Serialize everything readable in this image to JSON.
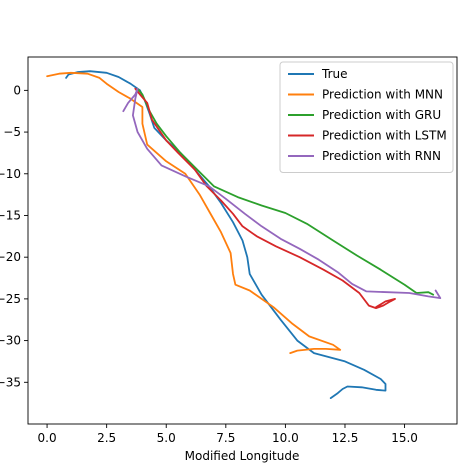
{
  "chart_data": {
    "type": "line",
    "title": "",
    "xlabel": "Modified Longitude",
    "ylabel": "",
    "xlim": [
      -0.8,
      17.2
    ],
    "ylim": [
      -40,
      4
    ],
    "x_ticks": [
      0.0,
      2.5,
      5.0,
      7.5,
      10.0,
      12.5,
      15.0
    ],
    "x_tick_labels": [
      "0.0",
      "2.5",
      "5.0",
      "7.5",
      "10.0",
      "12.5",
      "15.0"
    ],
    "y_ticks": [
      0,
      -5,
      -10,
      -15,
      -20,
      -25,
      -30,
      -35
    ],
    "y_tick_labels": [
      "0",
      "−5",
      "−10",
      "−15",
      "−20",
      "−25",
      "−30",
      "−35"
    ],
    "grid": false,
    "legend_position": "top-right",
    "series": [
      {
        "name": "True",
        "color": "#1f77b4",
        "points": [
          [
            0.8,
            1.5
          ],
          [
            0.9,
            1.9
          ],
          [
            1.3,
            2.2
          ],
          [
            1.8,
            2.3
          ],
          [
            2.5,
            2.1
          ],
          [
            3.0,
            1.6
          ],
          [
            3.5,
            0.8
          ],
          [
            3.9,
            0.0
          ],
          [
            4.1,
            -1.2
          ],
          [
            4.3,
            -2.8
          ],
          [
            4.5,
            -4.5
          ],
          [
            5.0,
            -6.0
          ],
          [
            5.6,
            -7.5
          ],
          [
            6.2,
            -9.5
          ],
          [
            6.8,
            -11.5
          ],
          [
            7.3,
            -13.5
          ],
          [
            7.8,
            -15.8
          ],
          [
            8.2,
            -18.0
          ],
          [
            8.4,
            -20.0
          ],
          [
            8.5,
            -22.0
          ],
          [
            9.0,
            -24.5
          ],
          [
            9.8,
            -27.5
          ],
          [
            10.5,
            -30.0
          ],
          [
            11.2,
            -31.5
          ],
          [
            12.5,
            -32.5
          ],
          [
            13.3,
            -33.5
          ],
          [
            14.0,
            -34.6
          ],
          [
            14.2,
            -35.2
          ],
          [
            14.2,
            -36.0
          ],
          [
            13.8,
            -35.9
          ],
          [
            13.2,
            -35.6
          ],
          [
            12.6,
            -35.5
          ],
          [
            12.4,
            -35.8
          ],
          [
            12.2,
            -36.3
          ],
          [
            11.9,
            -36.9
          ]
        ]
      },
      {
        "name": "Prediction with MNN",
        "color": "#ff7f0e",
        "points": [
          [
            0.0,
            1.7
          ],
          [
            0.5,
            2.0
          ],
          [
            1.0,
            2.1
          ],
          [
            1.7,
            2.0
          ],
          [
            2.2,
            1.5
          ],
          [
            2.5,
            0.8
          ],
          [
            3.0,
            -0.2
          ],
          [
            3.5,
            -1.0
          ],
          [
            4.0,
            -2.0
          ],
          [
            4.0,
            -4.0
          ],
          [
            4.2,
            -6.5
          ],
          [
            5.0,
            -8.5
          ],
          [
            5.8,
            -10.0
          ],
          [
            6.4,
            -12.5
          ],
          [
            6.9,
            -15.0
          ],
          [
            7.3,
            -17.0
          ],
          [
            7.7,
            -19.5
          ],
          [
            7.8,
            -22.0
          ],
          [
            7.9,
            -23.3
          ],
          [
            8.5,
            -24.0
          ],
          [
            9.5,
            -26.0
          ],
          [
            10.3,
            -28.0
          ],
          [
            11.0,
            -29.5
          ],
          [
            12.0,
            -30.5
          ],
          [
            12.3,
            -31.1
          ],
          [
            11.7,
            -31.0
          ],
          [
            11.2,
            -31.0
          ],
          [
            10.5,
            -31.2
          ],
          [
            10.2,
            -31.5
          ]
        ]
      },
      {
        "name": "Prediction with GRU",
        "color": "#2ca02c",
        "points": [
          [
            3.8,
            0.2
          ],
          [
            4.0,
            -0.5
          ],
          [
            4.3,
            -2.5
          ],
          [
            4.6,
            -4.0
          ],
          [
            5.0,
            -5.5
          ],
          [
            5.6,
            -7.5
          ],
          [
            6.3,
            -9.5
          ],
          [
            7.0,
            -11.5
          ],
          [
            8.0,
            -12.8
          ],
          [
            9.0,
            -13.8
          ],
          [
            10.0,
            -14.7
          ],
          [
            10.9,
            -16.0
          ],
          [
            12.0,
            -18.0
          ],
          [
            13.0,
            -19.8
          ],
          [
            14.0,
            -21.5
          ],
          [
            15.0,
            -23.3
          ],
          [
            15.5,
            -24.3
          ],
          [
            16.0,
            -24.2
          ],
          [
            16.2,
            -24.5
          ]
        ]
      },
      {
        "name": "Prediction with LSTM",
        "color": "#d62728",
        "points": [
          [
            3.7,
            0.2
          ],
          [
            3.9,
            -0.5
          ],
          [
            4.2,
            -1.5
          ],
          [
            4.4,
            -3.5
          ],
          [
            5.0,
            -6.0
          ],
          [
            5.5,
            -7.5
          ],
          [
            6.2,
            -9.5
          ],
          [
            6.7,
            -11.5
          ],
          [
            7.3,
            -13.2
          ],
          [
            7.8,
            -14.8
          ],
          [
            8.2,
            -16.3
          ],
          [
            8.8,
            -17.5
          ],
          [
            9.6,
            -18.7
          ],
          [
            10.6,
            -20.0
          ],
          [
            11.6,
            -21.5
          ],
          [
            12.4,
            -22.8
          ],
          [
            13.1,
            -24.3
          ],
          [
            13.5,
            -25.8
          ],
          [
            13.8,
            -26.1
          ],
          [
            14.1,
            -25.8
          ],
          [
            14.4,
            -25.3
          ],
          [
            14.6,
            -25.0
          ],
          [
            14.2,
            -25.3
          ],
          [
            13.8,
            -26.0
          ]
        ]
      },
      {
        "name": "Prediction with RNN",
        "color": "#9467bd",
        "points": [
          [
            3.2,
            -2.5
          ],
          [
            3.4,
            -1.5
          ],
          [
            3.7,
            -0.5
          ],
          [
            3.8,
            0.2
          ],
          [
            3.7,
            -1.0
          ],
          [
            3.6,
            -3.0
          ],
          [
            3.8,
            -5.0
          ],
          [
            4.2,
            -7.0
          ],
          [
            4.8,
            -9.0
          ],
          [
            5.8,
            -10.3
          ],
          [
            6.8,
            -11.5
          ],
          [
            7.5,
            -13.0
          ],
          [
            8.3,
            -14.8
          ],
          [
            9.0,
            -16.3
          ],
          [
            9.8,
            -17.8
          ],
          [
            10.6,
            -19.0
          ],
          [
            11.4,
            -20.3
          ],
          [
            12.2,
            -21.8
          ],
          [
            12.8,
            -23.2
          ],
          [
            13.4,
            -24.1
          ],
          [
            14.3,
            -24.2
          ],
          [
            15.2,
            -24.3
          ],
          [
            16.0,
            -24.7
          ],
          [
            16.5,
            -24.9
          ],
          [
            16.3,
            -24.0
          ]
        ]
      }
    ]
  }
}
